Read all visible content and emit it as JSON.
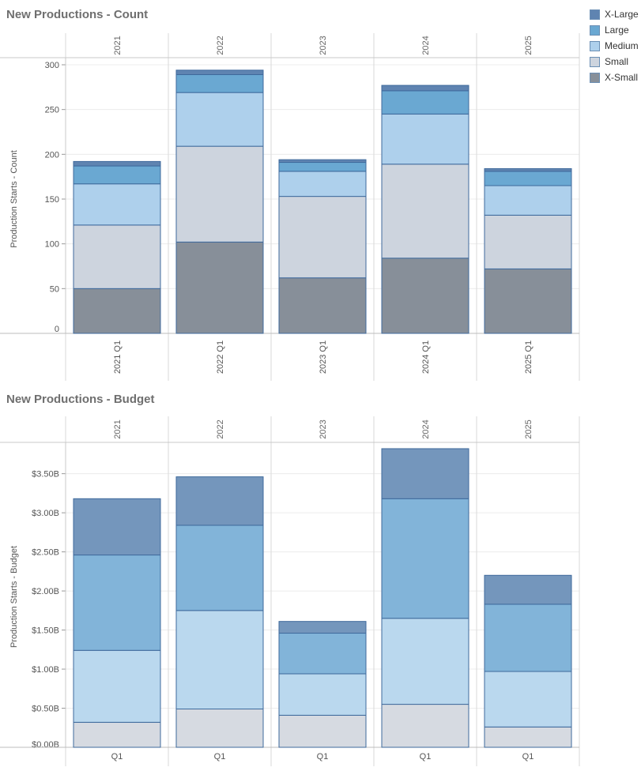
{
  "charts": {
    "count_title": "New Productions - Count",
    "budget_title": "New Productions - Budget"
  },
  "legend": [
    {
      "label": "X-Large",
      "color": "#5f84b1"
    },
    {
      "label": "Large",
      "color": "#6aa8d2"
    },
    {
      "label": "Medium",
      "color": "#aed0ec"
    },
    {
      "label": "Small",
      "color": "#cdd4de"
    },
    {
      "label": "X-Small",
      "color": "#878f99"
    }
  ],
  "chart_data": [
    {
      "type": "bar",
      "stacked": true,
      "title": "New Productions - Count",
      "ylabel": "Production Starts - Count",
      "column_headers": [
        "2021",
        "2022",
        "2023",
        "2024",
        "2025"
      ],
      "categories": [
        "2021 Q1",
        "2022 Q1",
        "2023 Q1",
        "2024 Q1",
        "2025 Q1"
      ],
      "ylim": [
        0,
        300
      ],
      "yticks": [
        0,
        50,
        100,
        150,
        200,
        250,
        300
      ],
      "ytick_labels": [
        "0",
        "50",
        "100",
        "150",
        "200",
        "250",
        "300"
      ],
      "series": [
        {
          "name": "X-Small",
          "color": "#878f99",
          "values": [
            50,
            102,
            62,
            84,
            72
          ]
        },
        {
          "name": "Small",
          "color": "#cdd4de",
          "values": [
            71,
            107,
            91,
            105,
            60
          ]
        },
        {
          "name": "Medium",
          "color": "#aed0ec",
          "values": [
            46,
            60,
            28,
            56,
            33
          ]
        },
        {
          "name": "Large",
          "color": "#6aa8d2",
          "values": [
            20,
            20,
            10,
            26,
            16
          ]
        },
        {
          "name": "X-Large",
          "color": "#5f84b1",
          "values": [
            5,
            5,
            3,
            6,
            3
          ]
        }
      ]
    },
    {
      "type": "bar",
      "stacked": true,
      "title": "New Productions - Budget",
      "ylabel": "Production Starts - Budget",
      "column_headers": [
        "2021",
        "2022",
        "2023",
        "2024",
        "2025"
      ],
      "categories": [
        "Q1",
        "Q1",
        "Q1",
        "Q1",
        "Q1"
      ],
      "ylim": [
        0,
        3.85
      ],
      "yticks": [
        0,
        0.5,
        1.0,
        1.5,
        2.0,
        2.5,
        3.0,
        3.5
      ],
      "ytick_labels": [
        "$0.00B",
        "$0.50B",
        "$1.00B",
        "$1.50B",
        "$2.00B",
        "$2.50B",
        "$3.00B",
        "$3.50B"
      ],
      "series": [
        {
          "name": "Small",
          "color": "#d6dae1",
          "values": [
            0.32,
            0.49,
            0.41,
            0.55,
            0.26
          ]
        },
        {
          "name": "Medium",
          "color": "#bad8ee",
          "values": [
            0.92,
            1.26,
            0.53,
            1.1,
            0.71
          ]
        },
        {
          "name": "Large",
          "color": "#82b4d9",
          "values": [
            1.22,
            1.09,
            0.52,
            1.53,
            0.86
          ]
        },
        {
          "name": "X-Large",
          "color": "#7496bc",
          "values": [
            0.72,
            0.62,
            0.15,
            0.64,
            0.37
          ]
        }
      ]
    }
  ]
}
